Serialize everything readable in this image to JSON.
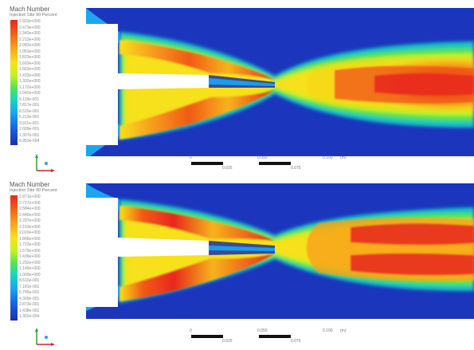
{
  "panels": [
    {
      "title": "Mach Number",
      "subtitle": "Injection Site 90 Percent",
      "ticks": [
        "2.603e+000",
        "2.473e+000",
        "2.343e+000",
        "2.213e+000",
        "2.083e+000",
        "1.953e+000",
        "1.823e+000",
        "1.693e+000",
        "1.563e+000",
        "1.433e+000",
        "1.302e+000",
        "1.172e+000",
        "1.042e+000",
        "9.119e-001",
        "7.817e-001",
        "6.515e-001",
        "5.213e-001",
        "3.911e-001",
        "2.609e-001",
        "1.307e-001",
        "6.953e-004"
      ],
      "scale": {
        "l0": "0",
        "l1": "0.050",
        "l2": "0.100",
        "l3": "(m)",
        "s1": "0.025",
        "s2": "0.075"
      }
    },
    {
      "title": "Mach Number",
      "subtitle": "Injection Site 90 Percent",
      "ticks": [
        "2.871e+000",
        "2.727e+000",
        "2.584e+000",
        "2.440e+000",
        "2.297e+000",
        "2.153e+000",
        "2.010e+000",
        "1.866e+000",
        "1.723e+000",
        "1.579e+000",
        "1.436e+000",
        "1.292e+000",
        "1.149e+000",
        "1.005e+000",
        "8.616e-001",
        "7.181e-001",
        "5.745e-001",
        "4.309e-001",
        "2.873e-001",
        "1.438e-001",
        "1.302e-004"
      ],
      "scale": {
        "l0": "0",
        "l1": "0.050",
        "l2": "0.100",
        "l3": "(m)",
        "s1": "0.025",
        "s2": "0.075"
      }
    }
  ],
  "colors": {
    "background": "#1a2fb0",
    "jet_core": "#e8281d",
    "wall": "#ffffff"
  }
}
